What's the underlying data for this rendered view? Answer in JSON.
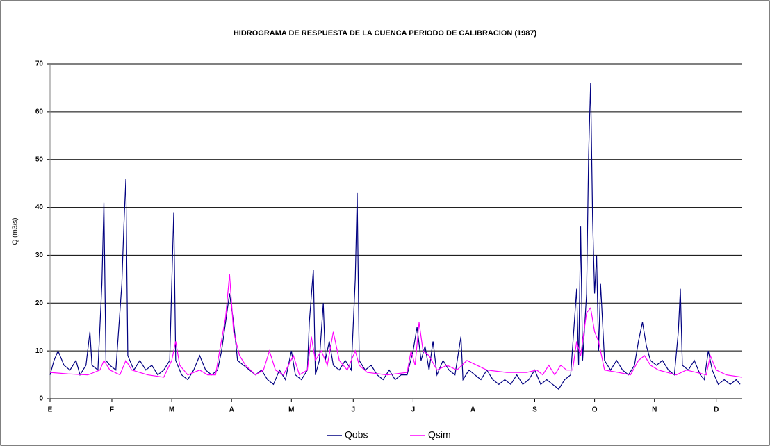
{
  "chart_data": {
    "type": "line",
    "title": "HIDROGRAMA DE RESPUESTA DE LA CUENCA PERIODO DE CALIBRACION (1987)",
    "y_label": "Q (m3/s)",
    "xlim": [
      1,
      348
    ],
    "xticks": [
      {
        "value": 1,
        "label": "E"
      },
      {
        "value": 32,
        "label": "F"
      },
      {
        "value": 62,
        "label": "M"
      },
      {
        "value": 92,
        "label": "A"
      },
      {
        "value": 122,
        "label": "M"
      },
      {
        "value": 153,
        "label": "J"
      },
      {
        "value": 183,
        "label": "J"
      },
      {
        "value": 213,
        "label": "A"
      },
      {
        "value": 244,
        "label": "S"
      },
      {
        "value": 274,
        "label": "O"
      },
      {
        "value": 304,
        "label": "N"
      },
      {
        "value": 335,
        "label": "D"
      }
    ],
    "ylim": [
      0,
      70
    ],
    "yticks": [
      0,
      10,
      20,
      30,
      40,
      50,
      60,
      70
    ],
    "grid": true,
    "legend": "bottom",
    "series": [
      {
        "name": "Qobs",
        "color": "#000080",
        "x": [
          1,
          3,
          5,
          8,
          11,
          14,
          16,
          19,
          21,
          22,
          25,
          27,
          28,
          29,
          31,
          34,
          37,
          38,
          39,
          40,
          43,
          46,
          49,
          52,
          55,
          58,
          61,
          62,
          63,
          64,
          67,
          70,
          73,
          76,
          79,
          82,
          85,
          87,
          89,
          91,
          93,
          95,
          98,
          101,
          104,
          107,
          110,
          113,
          116,
          119,
          122,
          124,
          127,
          130,
          131,
          133,
          134,
          136,
          138,
          139,
          141,
          143,
          146,
          149,
          152,
          154,
          155,
          156,
          159,
          162,
          165,
          168,
          171,
          174,
          177,
          180,
          183,
          185,
          187,
          189,
          191,
          193,
          195,
          198,
          201,
          204,
          207,
          208,
          211,
          214,
          217,
          220,
          223,
          226,
          229,
          232,
          235,
          238,
          241,
          244,
          247,
          250,
          253,
          256,
          259,
          262,
          265,
          266,
          267,
          268,
          270,
          271,
          272,
          273,
          274,
          275,
          276,
          277,
          279,
          282,
          285,
          288,
          291,
          294,
          296,
          298,
          300,
          302,
          305,
          308,
          311,
          314,
          316,
          317,
          318,
          321,
          324,
          327,
          329,
          331,
          333,
          336,
          339,
          342,
          345,
          347
        ],
        "values": [
          5,
          8,
          10,
          7,
          6,
          8,
          5,
          7,
          14,
          7,
          6,
          24,
          41,
          8,
          7,
          6,
          24,
          36,
          46,
          9,
          6,
          8,
          6,
          7,
          5,
          6,
          8,
          24,
          39,
          8,
          5,
          4,
          6,
          9,
          6,
          5,
          6,
          10,
          16,
          22,
          16,
          8,
          7,
          6,
          5,
          6,
          4,
          3,
          6,
          4,
          10,
          5,
          4,
          6,
          16,
          27,
          5,
          8,
          20,
          8,
          12,
          7,
          6,
          8,
          6,
          25,
          43,
          8,
          6,
          7,
          5,
          4,
          6,
          4,
          5,
          5,
          10,
          15,
          8,
          11,
          6,
          12,
          5,
          8,
          6,
          5,
          13,
          4,
          6,
          5,
          4,
          6,
          4,
          3,
          4,
          3,
          5,
          3,
          4,
          6,
          3,
          4,
          3,
          2,
          4,
          5,
          23,
          7,
          36,
          8,
          22,
          51,
          66,
          38,
          22,
          30,
          10,
          24,
          8,
          6,
          8,
          6,
          5,
          7,
          12,
          16,
          11,
          8,
          7,
          8,
          6,
          5,
          14,
          23,
          7,
          6,
          8,
          5,
          4,
          10,
          6,
          3,
          4,
          3,
          4,
          3
        ]
      },
      {
        "name": "Qsim",
        "color": "#ff00ff",
        "x": [
          1,
          10,
          20,
          26,
          28,
          31,
          36,
          39,
          42,
          50,
          58,
          62,
          64,
          66,
          70,
          76,
          80,
          84,
          86,
          89,
          91,
          93,
          96,
          99,
          104,
          108,
          111,
          114,
          118,
          123,
          126,
          130,
          132,
          134,
          137,
          140,
          143,
          146,
          150,
          154,
          156,
          160,
          170,
          180,
          182,
          184,
          186,
          188,
          191,
          195,
          200,
          205,
          210,
          215,
          220,
          230,
          240,
          245,
          248,
          251,
          254,
          257,
          260,
          263,
          265,
          267,
          270,
          272,
          274,
          276,
          279,
          286,
          292,
          296,
          299,
          302,
          306,
          315,
          320,
          325,
          330,
          332,
          335,
          340,
          348
        ],
        "values": [
          5.5,
          5.2,
          5,
          6,
          8,
          6,
          5,
          8,
          6,
          5,
          4.5,
          8,
          12,
          7,
          5,
          6,
          5,
          5,
          10,
          17,
          26,
          14,
          9,
          7,
          5,
          6,
          10,
          6,
          5,
          9,
          5,
          6,
          13,
          8,
          10,
          7,
          14,
          8,
          6,
          10,
          7,
          5.5,
          5,
          5.5,
          10,
          7,
          16,
          10,
          9,
          6,
          7,
          6,
          8,
          7,
          6,
          5.5,
          5.5,
          6,
          5,
          7,
          5,
          7,
          6,
          6,
          12,
          9,
          18,
          19,
          14,
          12,
          6,
          5.5,
          5,
          8,
          9,
          7,
          6,
          5,
          6,
          5.5,
          5,
          9,
          6,
          5,
          4.5
        ]
      }
    ]
  }
}
